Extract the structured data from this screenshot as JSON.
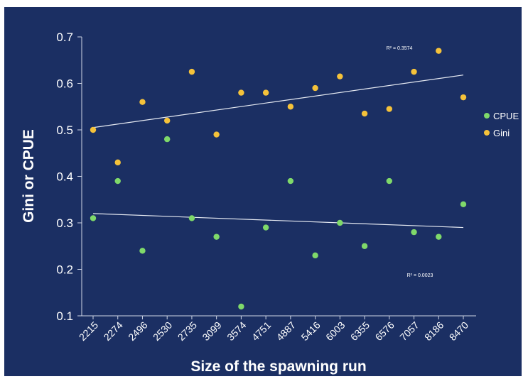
{
  "chart_data": {
    "type": "scatter",
    "xlabel": "Size of the spawning run",
    "ylabel": "Gini or CPUE",
    "categories": [
      "2215",
      "2274",
      "2496",
      "2530",
      "2735",
      "3099",
      "3574",
      "4751",
      "4887",
      "5416",
      "6003",
      "6355",
      "6576",
      "7057",
      "8186",
      "8470"
    ],
    "ylim": [
      0.1,
      0.7
    ],
    "yticks": [
      "0.1",
      "0.2",
      "0.3",
      "0.4",
      "0.5",
      "0.6",
      "0.7"
    ],
    "legend_position": "right",
    "grid": false,
    "series": [
      {
        "name": "CPUE",
        "color": "#7fd96a",
        "values": [
          0.31,
          0.39,
          0.24,
          0.48,
          0.31,
          0.27,
          0.12,
          0.29,
          0.39,
          0.23,
          0.3,
          0.25,
          0.39,
          0.28,
          0.27,
          0.34
        ],
        "trendline": [
          0.32,
          0.29
        ],
        "r2_label": "R² = 0.0023"
      },
      {
        "name": "Gini",
        "color": "#f5c23a",
        "values": [
          0.5,
          0.43,
          0.56,
          0.52,
          0.625,
          0.49,
          0.58,
          0.58,
          0.55,
          0.59,
          0.615,
          0.535,
          0.545,
          0.625,
          0.67,
          0.57
        ],
        "trendline": [
          0.505,
          0.618
        ],
        "r2_label": "R² = 0.3574"
      }
    ]
  }
}
